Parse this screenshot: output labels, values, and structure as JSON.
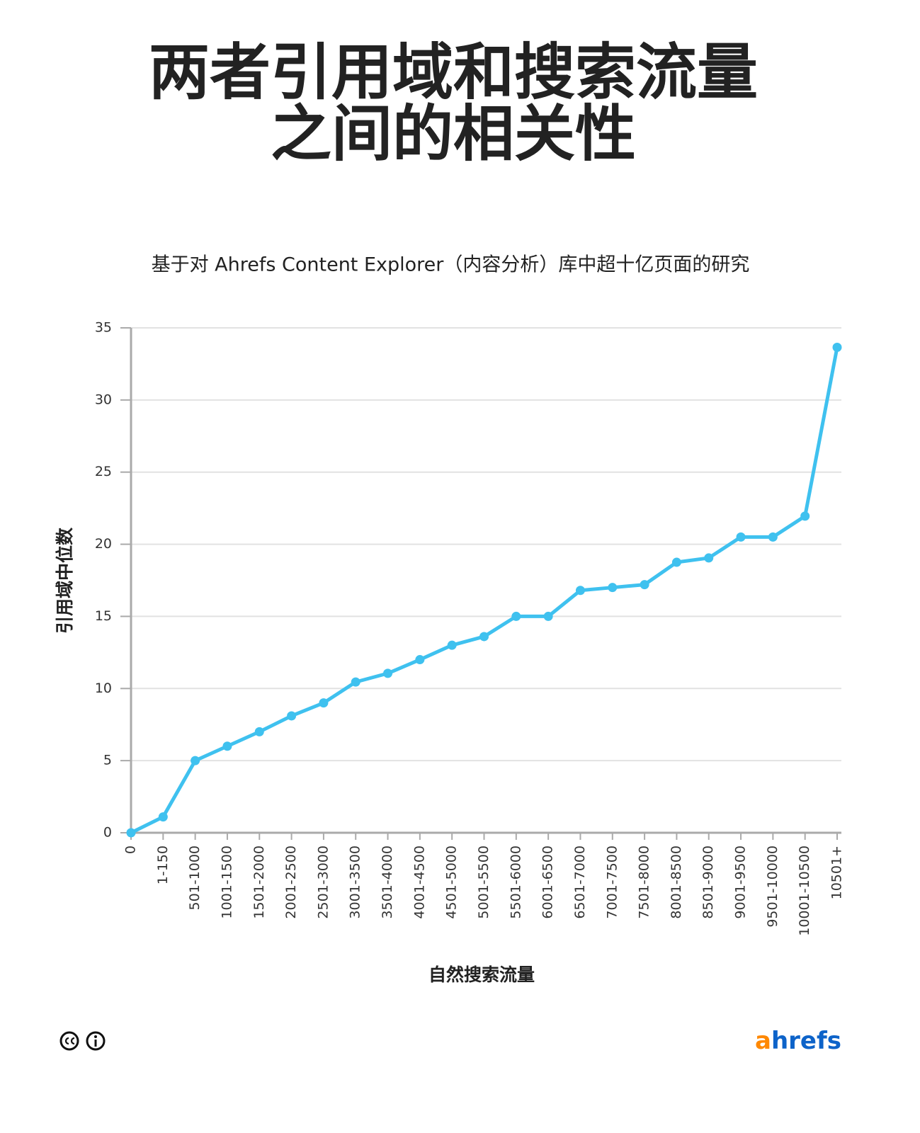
{
  "chart_data": {
    "type": "line",
    "title_lines": [
      "两者引用域和搜索流量",
      "之间的相关性"
    ],
    "subtitle": "基于对 Ahrefs Content Explorer（内容分析）库中超十亿页面的研究",
    "y_label": "引用域中位数",
    "x_label": "自然搜索流量",
    "categories": [
      "0",
      "1-150",
      "501-1000",
      "1001-1500",
      "1501-2000",
      "2001-2500",
      "2501-3000",
      "3001-3500",
      "3501-4000",
      "4001-4500",
      "4501-5000",
      "5001-5500",
      "5501-6000",
      "6001-6500",
      "6501-7000",
      "7001-7500",
      "7501-8000",
      "8001-8500",
      "8501-9000",
      "9001-9500",
      "9501-10000",
      "10001-10500",
      "10501+"
    ],
    "values": [
      0,
      1.1,
      5,
      6,
      7,
      8.1,
      9,
      10.45,
      11.05,
      12,
      13,
      13.6,
      15,
      15,
      16.8,
      17,
      17.2,
      18.75,
      19.05,
      20.5,
      20.5,
      21.95,
      33.65
    ],
    "color": "#3fc1ef",
    "ylim": [
      0,
      35
    ],
    "yticks": [
      0,
      5,
      10,
      15,
      20,
      25,
      30,
      35
    ],
    "grid": true,
    "logo": [
      "a",
      "hrefs"
    ]
  }
}
